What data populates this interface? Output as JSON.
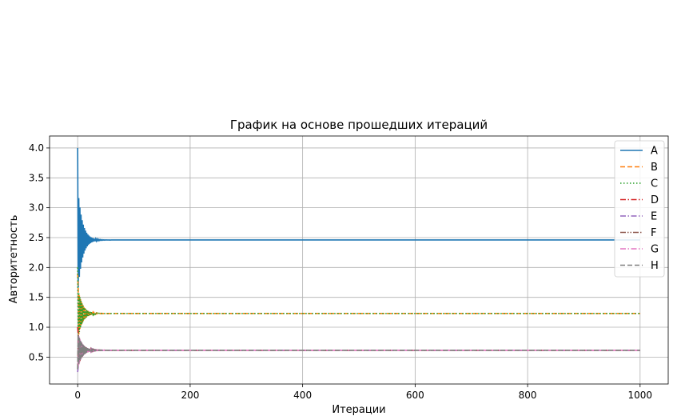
{
  "chart_data": {
    "type": "line",
    "title": "График на основе прошедших итераций",
    "xlabel": "Итерации",
    "ylabel": "Авторитетность",
    "xlim": [
      -50,
      1050
    ],
    "ylim": [
      0.05,
      4.2
    ],
    "xticks": [
      0,
      200,
      400,
      600,
      800,
      1000
    ],
    "yticks": [
      0.5,
      1.0,
      1.5,
      2.0,
      2.5,
      3.0,
      3.5,
      4.0
    ],
    "grid": true,
    "legend_position": "top-right",
    "iterations": 1000,
    "series": [
      {
        "name": "A",
        "color": "#1f77b4",
        "dash": "solid",
        "start": 4.0,
        "final": 2.46,
        "amplitude": 0.9
      },
      {
        "name": "B",
        "color": "#ff7f0e",
        "dash": "dashed",
        "start": 1.9,
        "final": 1.23,
        "amplitude": 0.45
      },
      {
        "name": "C",
        "color": "#2ca02c",
        "dash": "dotted",
        "start": 2.0,
        "final": 1.23,
        "amplitude": 0.45
      },
      {
        "name": "D",
        "color": "#d62728",
        "dash": "dashdot",
        "start": 1.0,
        "final": 0.615,
        "amplitude": 0.3
      },
      {
        "name": "E",
        "color": "#9467bd",
        "dash": "dashdot",
        "start": 0.25,
        "final": 0.615,
        "amplitude": 0.3
      },
      {
        "name": "F",
        "color": "#8c564b",
        "dash": "dashdotdot",
        "start": 0.3,
        "final": 0.615,
        "amplitude": 0.3
      },
      {
        "name": "G",
        "color": "#e377c2",
        "dash": "dashdot",
        "start": 0.35,
        "final": 0.615,
        "amplitude": 0.3
      },
      {
        "name": "H",
        "color": "#7f7f7f",
        "dash": "dashed",
        "start": 0.3,
        "final": 0.615,
        "amplitude": 0.3
      }
    ]
  }
}
